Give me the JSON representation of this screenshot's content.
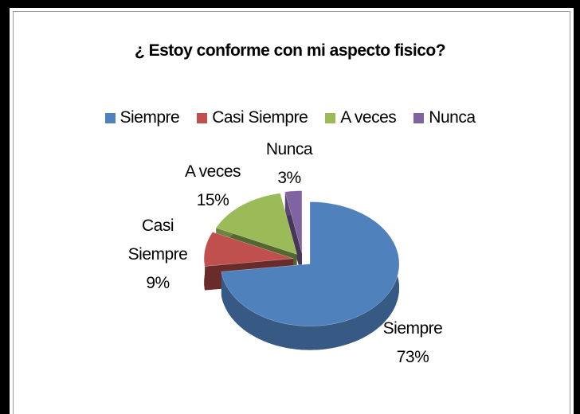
{
  "chart_data": {
    "type": "pie",
    "title": "¿ Estoy conforme con mi aspecto fisico?",
    "categories": [
      "Siempre",
      "Casi Siempre",
      "A veces",
      "Nunca"
    ],
    "values": [
      73,
      9,
      15,
      3
    ],
    "value_labels": [
      "73%",
      "9%",
      "15%",
      "3%"
    ],
    "colors": [
      "#4f81bd",
      "#c0504d",
      "#9bbb59",
      "#8064a2"
    ],
    "legend": "top"
  }
}
